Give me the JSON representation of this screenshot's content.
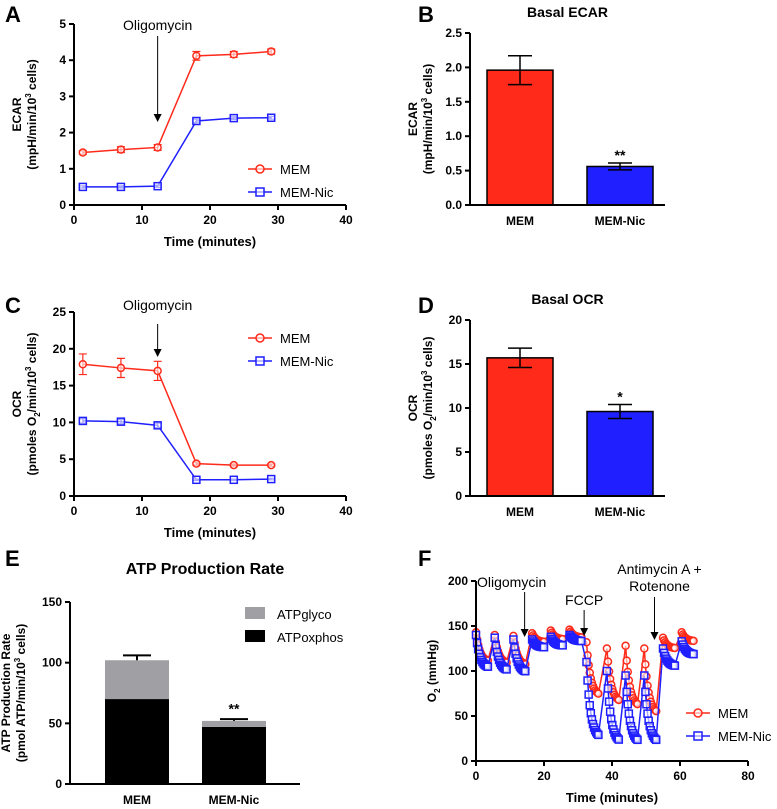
{
  "chart_data": [
    {
      "panel": "A",
      "type": "line",
      "title": "",
      "xlabel": "Time (minutes)",
      "ylabel_line1": "ECAR",
      "ylabel_line2": "(mpH/min/10",
      "ylabel_sup": "3",
      "ylabel_end": " cells)",
      "xlim": [
        0,
        40
      ],
      "ylim": [
        0,
        5
      ],
      "xticks": [
        0,
        10,
        20,
        30,
        40
      ],
      "yticks": [
        0,
        1,
        2,
        3,
        4,
        5
      ],
      "annotations": [
        {
          "text": "Oligomycin",
          "x": 12.3
        }
      ],
      "legend": "bottom-right",
      "series": [
        {
          "name": "MEM",
          "color": "#ff2a1a",
          "marker": "circle",
          "x": [
            1.3,
            6.9,
            12.3,
            18,
            23.5,
            29
          ],
          "y": [
            1.45,
            1.53,
            1.59,
            4.12,
            4.16,
            4.24
          ],
          "err": [
            0.05,
            0.08,
            0.08,
            0.12,
            0.08,
            0.07
          ]
        },
        {
          "name": "MEM-Nic",
          "color": "#1f1fff",
          "marker": "square",
          "x": [
            1.3,
            6.9,
            12.3,
            18,
            23.5,
            29
          ],
          "y": [
            0.5,
            0.5,
            0.52,
            2.32,
            2.4,
            2.41
          ],
          "err": [
            0.03,
            0.03,
            0.03,
            0.05,
            0.04,
            0.04
          ]
        }
      ]
    },
    {
      "panel": "B",
      "type": "bar",
      "title": "Basal ECAR",
      "categories": [
        "MEM",
        "MEM-Nic"
      ],
      "values": [
        1.96,
        0.56
      ],
      "err": [
        0.21,
        0.05
      ],
      "colors": [
        "#ff2a1a",
        "#1f1fff"
      ],
      "significance": [
        "",
        "**"
      ],
      "ylabel_line1": "ECAR",
      "ylabel_line2": "(mpH/min/10",
      "ylabel_sup": "3",
      "ylabel_end": " cells)",
      "ylim": [
        0,
        2.5
      ],
      "yticks": [
        "0.0",
        "0.5",
        "1.0",
        "1.5",
        "2.0",
        "2.5"
      ]
    },
    {
      "panel": "C",
      "type": "line",
      "xlabel": "Time (minutes)",
      "ylabel_line1": "OCR",
      "ylabel_line2": "(pmoles O",
      "ylabel_sub": "2",
      "ylabel_mid": "/min/10",
      "ylabel_sup": "3",
      "ylabel_end": " cells)",
      "xlim": [
        0,
        40
      ],
      "ylim": [
        0,
        25
      ],
      "xticks": [
        0,
        10,
        20,
        30,
        40
      ],
      "yticks": [
        0,
        5,
        10,
        15,
        20,
        25
      ],
      "annotations": [
        {
          "text": "Oligomycin",
          "x": 12.3
        }
      ],
      "legend": "top-right",
      "series": [
        {
          "name": "MEM",
          "color": "#ff2a1a",
          "marker": "circle",
          "x": [
            1.3,
            6.9,
            12.3,
            18,
            23.5,
            29
          ],
          "y": [
            17.9,
            17.4,
            17.0,
            4.4,
            4.2,
            4.2
          ],
          "err": [
            1.4,
            1.3,
            1.3,
            0.2,
            0.15,
            0.15
          ]
        },
        {
          "name": "MEM-Nic",
          "color": "#1f1fff",
          "marker": "square",
          "x": [
            1.3,
            6.9,
            12.3,
            18,
            23.5,
            29
          ],
          "y": [
            10.2,
            10.1,
            9.6,
            2.2,
            2.2,
            2.3
          ],
          "err": [
            0.3,
            0.3,
            0.3,
            0.1,
            0.1,
            0.1
          ]
        }
      ]
    },
    {
      "panel": "D",
      "type": "bar",
      "title": "Basal OCR",
      "categories": [
        "MEM",
        "MEM-Nic"
      ],
      "values": [
        15.7,
        9.6
      ],
      "err": [
        1.1,
        0.8
      ],
      "colors": [
        "#ff2a1a",
        "#1f1fff"
      ],
      "significance": [
        "",
        "*"
      ],
      "ylabel_line1": "OCR",
      "ylabel_line2": "(pmoles O",
      "ylabel_sub": "2",
      "ylabel_mid": "/min/10",
      "ylabel_sup": "3",
      "ylabel_end": " cells)",
      "ylim": [
        0,
        20
      ],
      "yticks": [
        0,
        5,
        10,
        15,
        20
      ]
    },
    {
      "panel": "E",
      "type": "bar",
      "stacked": true,
      "title": "ATP Production Rate",
      "categories": [
        "MEM",
        "MEM-Nic"
      ],
      "ylabel_line1": "ATP Production Rate",
      "ylabel_line2": "(pmol ATP/min/10",
      "ylabel_sup": "3",
      "ylabel_end": " cells)",
      "ylim": [
        0,
        150
      ],
      "yticks": [
        0,
        50,
        100,
        150
      ],
      "legend": "top-right",
      "significance": [
        "",
        "**"
      ],
      "series": [
        {
          "name": "ATPoxphos",
          "color": "#000000",
          "values": [
            70,
            47
          ],
          "err": [
            5,
            3
          ]
        },
        {
          "name": "ATPglyco",
          "color": "#a0a0a4",
          "values": [
            32,
            5
          ],
          "err": [
            4,
            1.5
          ]
        }
      ]
    },
    {
      "panel": "F",
      "type": "line",
      "xlabel": "Time (minutes)",
      "ylabel": "O",
      "ylabel_sub": "2",
      "ylabel_end": " (mmHg)",
      "xlim": [
        0,
        80
      ],
      "ylim": [
        0,
        200
      ],
      "xticks": [
        0,
        20,
        40,
        60,
        80
      ],
      "yticks": [
        0,
        50,
        100,
        150,
        200
      ],
      "legend": "bottom-right",
      "annotations": [
        {
          "text": "Oligomycin",
          "x": 14.3
        },
        {
          "text": "FCCP",
          "x": 31.8
        },
        {
          "text": "Antimycin A +",
          "text2": "Rotenone",
          "x": 52.5
        }
      ],
      "cycle_starts": [
        0,
        5.5,
        11,
        16.5,
        22,
        27.5,
        32.5,
        38.5,
        44,
        49.5,
        55,
        60.5
      ],
      "cycle_length": 3.5,
      "points_per_cycle": 12,
      "series": [
        {
          "name": "MEM",
          "color": "#ff2a1a",
          "marker": "circle",
          "start": [
            143,
            140,
            139,
            142,
            145,
            146,
            132,
            125,
            128,
            125,
            137,
            143
          ],
          "end": [
            110,
            108,
            106,
            132,
            135,
            137,
            72,
            65,
            60,
            52,
            125,
            133
          ]
        },
        {
          "name": "MEM-Nic",
          "color": "#1f1fff",
          "marker": "square",
          "start": [
            140,
            137,
            135,
            135,
            138,
            140,
            110,
            100,
            95,
            95,
            125,
            133
          ],
          "end": [
            103,
            100,
            98,
            126,
            128,
            133,
            25,
            20,
            20,
            20,
            105,
            118
          ]
        }
      ]
    }
  ]
}
